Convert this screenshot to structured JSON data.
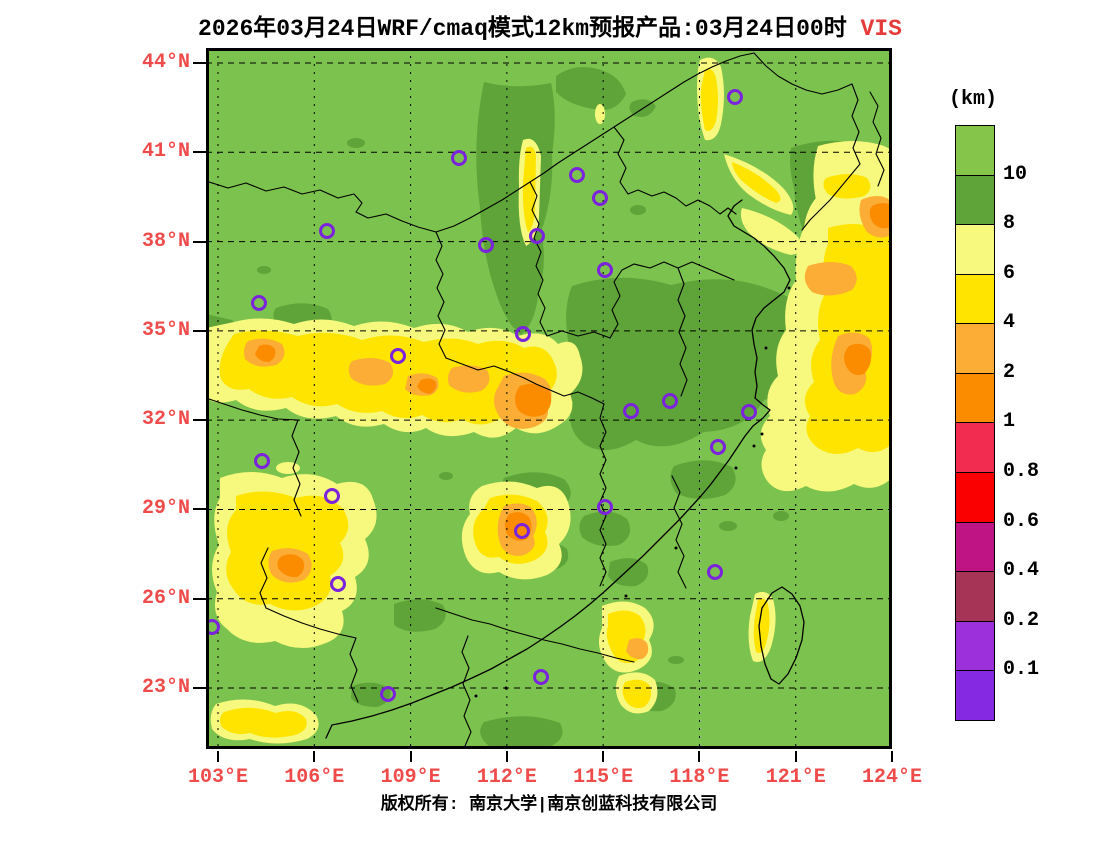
{
  "title": {
    "text": "2026年03月24日WRF/cmaq模式12km预报产品:03月24日00时",
    "highlight": " VIS",
    "highlight_color": "#e43b3b"
  },
  "axes": {
    "lat_labels": [
      "44°N",
      "41°N",
      "38°N",
      "35°N",
      "32°N",
      "29°N",
      "26°N",
      "23°N"
    ],
    "lon_labels": [
      "103°E",
      "106°E",
      "109°E",
      "112°E",
      "115°E",
      "118°E",
      "121°E",
      "124°E"
    ],
    "label_color": "#f04b4b",
    "lat_range": [
      23,
      44
    ],
    "lon_range": [
      103,
      124
    ]
  },
  "colorbar": {
    "unit": "(km)",
    "tick_labels": [
      "10",
      "8",
      "6",
      "4",
      "2",
      "1",
      "0.8",
      "0.6",
      "0.4",
      "0.2",
      "0.1"
    ],
    "colors": [
      "#84c54a",
      "#5ea439",
      "#f6f97d",
      "#ffe400",
      "#fcad35",
      "#fb8c00",
      "#f22c50",
      "#fa0000",
      "#bf1584",
      "#a53457",
      "#9c31dc",
      "#8629e2"
    ]
  },
  "map": {
    "fill_colors": {
      "g1": "#7cc24e",
      "g2": "#5ea439",
      "y0": "#f6f97d",
      "y1": "#ffe400",
      "y2": "#fcad35",
      "y3": "#fb8c00"
    },
    "boundary_color": "#000000",
    "grid_color": "#000000",
    "marker_color": "#7b22dd",
    "markers": [
      [
        529,
        49
      ],
      [
        371,
        127
      ],
      [
        394,
        150
      ],
      [
        253,
        110
      ],
      [
        121,
        183
      ],
      [
        280,
        197
      ],
      [
        331,
        188
      ],
      [
        399,
        222
      ],
      [
        53,
        255
      ],
      [
        317,
        286
      ],
      [
        192,
        308
      ],
      [
        425,
        363
      ],
      [
        464,
        353
      ],
      [
        543,
        364
      ],
      [
        512,
        399
      ],
      [
        56,
        413
      ],
      [
        126,
        448
      ],
      [
        399,
        459
      ],
      [
        316,
        483
      ],
      [
        132,
        536
      ],
      [
        509,
        524
      ],
      [
        6,
        579
      ],
      [
        335,
        629
      ],
      [
        182,
        646
      ]
    ]
  },
  "footer": {
    "text": "版权所有: 南京大学|南京创蓝科技有限公司"
  }
}
